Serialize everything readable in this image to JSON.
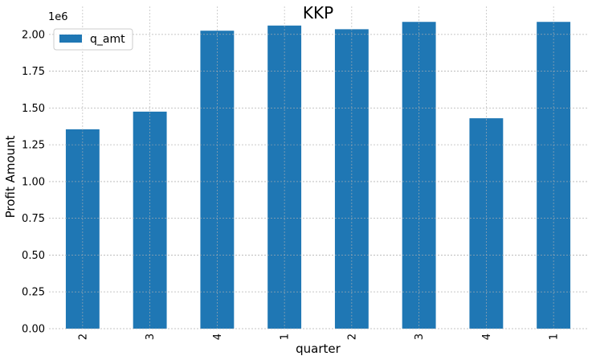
{
  "chart_data": {
    "type": "bar",
    "title": "KKP",
    "xlabel": "quarter",
    "ylabel": "Profit Amount",
    "y_offset_label": "1e6",
    "categories": [
      "2",
      "3",
      "4",
      "1",
      "2",
      "3",
      "4",
      "1"
    ],
    "series": [
      {
        "name": "q_amt",
        "color": "#1f77b4",
        "values": [
          1.355,
          1.475,
          2.025,
          2.06,
          2.035,
          2.085,
          1.43,
          2.085
        ]
      }
    ],
    "y_ticks": [
      "0.00",
      "0.25",
      "0.50",
      "0.75",
      "1.00",
      "1.25",
      "1.50",
      "1.75",
      "2.00"
    ],
    "y_tick_values": [
      0,
      0.25,
      0.5,
      0.75,
      1.0,
      1.25,
      1.5,
      1.75,
      2.0
    ],
    "ylim": [
      0,
      2.19
    ],
    "grid": true,
    "legend_position": "top-left",
    "x_tick_rotation": "vertical"
  }
}
